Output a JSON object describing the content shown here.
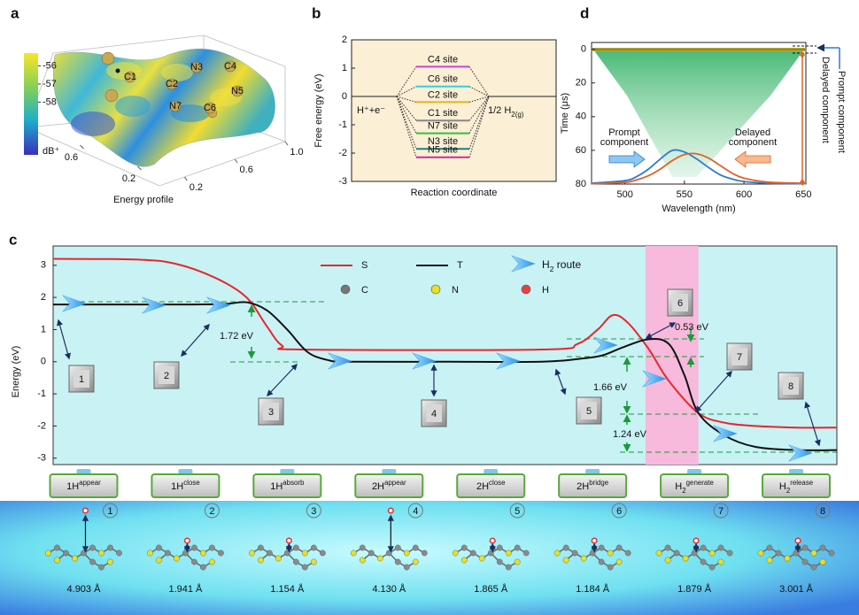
{
  "chart_data": [
    {
      "type": "surface",
      "panel": "a",
      "xlabel": "Energy profile",
      "colorbar": {
        "ticks": [
          -56,
          -57,
          -58
        ],
        "label": "dB⁺",
        "lim": [
          -60.9,
          -55.3
        ]
      },
      "sites": [
        "C1",
        "C2",
        "N3",
        "C4",
        "N5",
        "C6",
        "N7"
      ],
      "xlim": [
        0,
        1
      ],
      "ylim": [
        0,
        1
      ],
      "yticks": [
        0.2,
        0.6
      ],
      "xticks": [
        0.2,
        0.6,
        {
          "value": 1,
          "label": "1.0"
        }
      ]
    },
    {
      "type": "levels",
      "panel": "b",
      "ylabel": "Free energy (eV)",
      "xlabel": "Reaction coordinate",
      "ylim": [
        -3,
        2
      ],
      "yticks": [
        -3,
        -2,
        -1,
        0,
        1,
        2
      ],
      "reactant": "H⁺+e⁻",
      "product": {
        "main": "1/2  H",
        "sub": "2(g)"
      },
      "series": [
        {
          "name": "C4 site",
          "color": "#d040d0",
          "value": 1.05
        },
        {
          "name": "C6 site",
          "color": "#30d0e0",
          "value": 0.35
        },
        {
          "name": "C2 site",
          "color": "#e8b020",
          "value": -0.2
        },
        {
          "name": "C1 site",
          "color": "#888888",
          "value": -0.85
        },
        {
          "name": "N7 site",
          "color": "#30c040",
          "value": -1.3
        },
        {
          "name": "N3 site",
          "color": "#208080",
          "value": -1.85
        },
        {
          "name": "N5 site",
          "color": "#c030a0",
          "value": -2.15
        }
      ]
    },
    {
      "type": "line",
      "panel": "c",
      "ylabel": "Energy  (eV)",
      "ylim": [
        -3.2,
        3.6
      ],
      "yticks": [
        -3,
        -2,
        -1,
        0,
        1,
        2,
        3
      ],
      "xlim": [
        -0.3,
        7.4
      ],
      "band": [
        5.52,
        6.04
      ],
      "band_color": "#f7b9dc",
      "categories": [
        {
          "main": "1H",
          "sup": "appear"
        },
        {
          "main": "1H",
          "sup": "close"
        },
        {
          "main": "1H",
          "sup": "absorb"
        },
        {
          "main": "2H",
          "sup": "appear"
        },
        {
          "main": "2H",
          "sup": "close"
        },
        {
          "main": "2H",
          "sup": "bridge"
        },
        {
          "main": "H",
          "sub": "2",
          "sup": "generate"
        },
        {
          "main": "H",
          "sub": "2",
          "sup": "release"
        }
      ],
      "series": [
        {
          "name": "S",
          "color": "#e8262a",
          "x": [
            -0.3,
            0.5,
            0.9,
            1.3,
            1.6,
            1.8,
            1.95,
            2.15,
            4.5,
            4.85,
            5.05,
            5.2,
            5.35,
            5.55,
            5.75,
            6.04,
            6.3,
            6.6,
            7.0,
            7.4
          ],
          "values": [
            3.2,
            3.18,
            3.05,
            2.6,
            2.0,
            1.1,
            0.5,
            0.38,
            0.38,
            0.55,
            1.0,
            1.45,
            1.2,
            0.4,
            -0.6,
            -1.6,
            -1.9,
            -2.0,
            -2.05,
            -2.05
          ]
        },
        {
          "name": "T",
          "color": "#111111",
          "x": [
            -0.3,
            1.0,
            1.4,
            1.6,
            1.8,
            2.0,
            2.2,
            2.4,
            2.6,
            3.5,
            4.5,
            4.9,
            5.1,
            5.3,
            5.55,
            5.75,
            5.9,
            6.04,
            6.3,
            6.6,
            7.0,
            7.4
          ],
          "values": [
            1.78,
            1.78,
            1.8,
            1.85,
            1.6,
            1.0,
            0.3,
            0.05,
            0,
            0,
            0,
            0.1,
            0.2,
            0.45,
            0.7,
            0.55,
            -0.4,
            -1.6,
            -2.3,
            -2.65,
            -2.75,
            -2.75
          ]
        }
      ],
      "route": {
        "main": "H",
        "sub": "2",
        "tail": " route"
      },
      "atoms": [
        {
          "name": "C",
          "color": "#777777"
        },
        {
          "name": "N",
          "color": "#e8e020"
        },
        {
          "name": "H",
          "color": "#e84040"
        }
      ],
      "annotations": [
        "1.72 eV",
        "0.53  eV",
        "1.66  eV",
        "1.24  eV"
      ],
      "steps": [
        1,
        2,
        3,
        4,
        5,
        6,
        7,
        8
      ],
      "structures": {
        "labels": [
          1,
          2,
          3,
          4,
          5,
          6,
          7,
          8
        ],
        "distances": [
          "4.903 Å",
          "1.941 Å",
          "1.154 Å",
          "4.130 Å",
          "1.865 Å",
          "1.184 Å",
          "1.879 Å",
          "3.001 Å"
        ]
      }
    },
    {
      "type": "scatter",
      "panel": "d",
      "xlabel": "Wavelength (nm)",
      "ylabel": "Time (μs)",
      "xlim": [
        472,
        652
      ],
      "xticks": [
        500,
        550,
        600,
        650
      ],
      "ylim": [
        -4,
        80
      ],
      "yticks": [
        0,
        20,
        40,
        60,
        80
      ],
      "annotations": [
        [
          "Prompt",
          "component"
        ],
        [
          "Delayed",
          "component"
        ]
      ],
      "series": [
        {
          "name": "Prompt component",
          "color": "#2b7bd0",
          "x": [
            472,
            500,
            510,
            520,
            530,
            540,
            550,
            560,
            570,
            580,
            590,
            600,
            620,
            652
          ],
          "values": [
            79.5,
            78,
            75.5,
            71,
            65,
            60,
            61,
            65,
            70,
            74.5,
            77,
            78.5,
            79.5,
            79.8
          ]
        },
        {
          "name": "Delayed component",
          "color": "#e0622a",
          "x": [
            472,
            500,
            510,
            520,
            530,
            540,
            550,
            560,
            570,
            580,
            590,
            600,
            620,
            652
          ],
          "values": [
            79.8,
            79,
            77.5,
            75,
            71,
            66,
            62.5,
            62,
            64.5,
            69,
            73.5,
            76.5,
            78.8,
            79.6
          ]
        }
      ]
    }
  ]
}
